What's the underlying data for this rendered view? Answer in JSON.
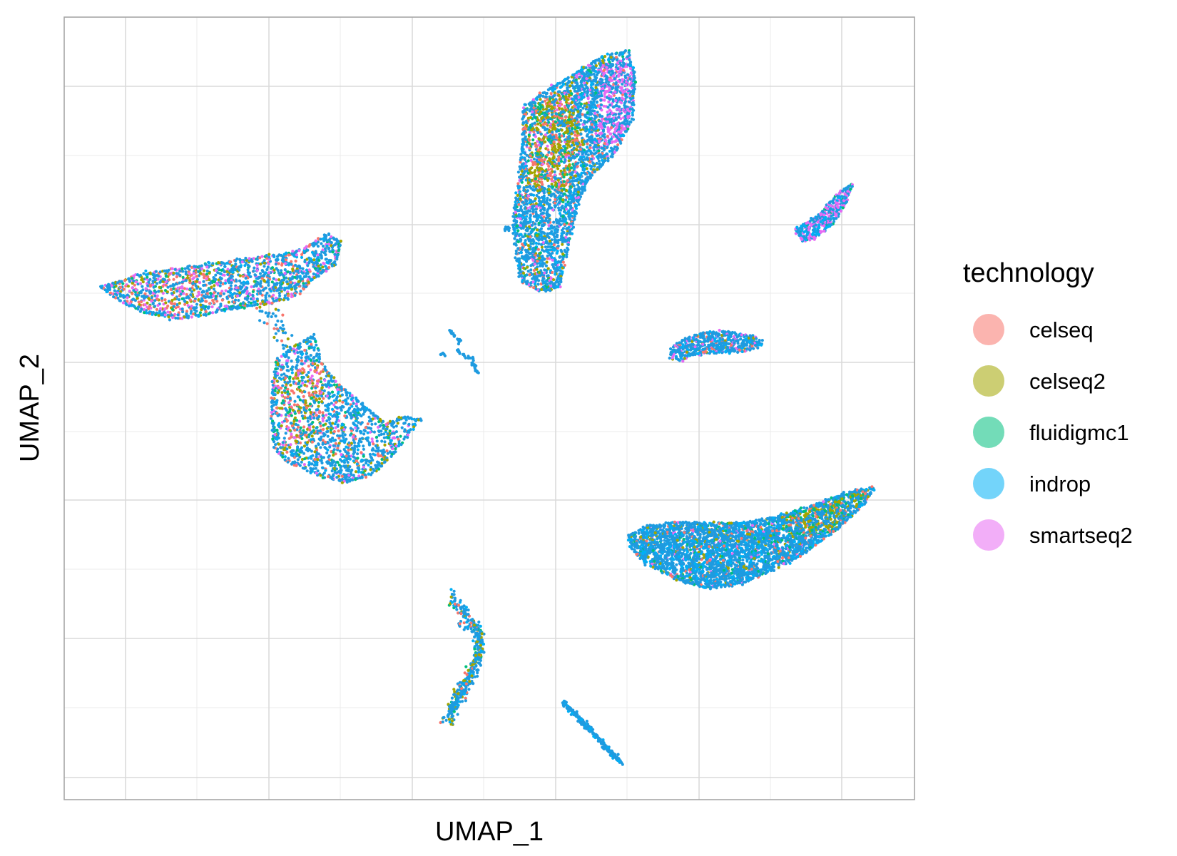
{
  "chart_data": {
    "type": "scatter",
    "xlabel": "UMAP_1",
    "ylabel": "UMAP_2",
    "x_tick_labels_shown": false,
    "y_tick_labels_shown": false,
    "grid": true,
    "legend_placement": "right",
    "legend": {
      "title": "technology",
      "entries": [
        {
          "label": "celseq",
          "color": "#F8766D"
        },
        {
          "label": "celseq2",
          "color": "#A3A500"
        },
        {
          "label": "fluidigmc1",
          "color": "#00BF7D"
        },
        {
          "label": "indrop",
          "color": "#00B0F6"
        },
        {
          "label": "smartseq2",
          "color": "#E76BF3"
        }
      ]
    },
    "xlim": [
      -11,
      12.5
    ],
    "ylim": [
      -12.5,
      10.5
    ],
    "point_color_main": "#1E9BE0"
  }
}
